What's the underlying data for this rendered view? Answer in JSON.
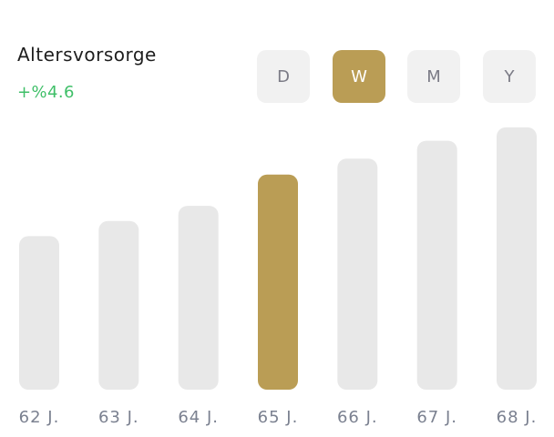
{
  "header": {
    "title": "Altersvorsorge",
    "change": "+%4.6"
  },
  "periods": {
    "options": [
      "D",
      "W",
      "M",
      "Y"
    ],
    "selected": "W"
  },
  "colors": {
    "accent": "#BA9D55",
    "bar": "#E8E8E8",
    "positive": "#3FBF68",
    "tick": "#7B8190"
  },
  "chart_data": {
    "type": "bar",
    "categories": [
      "62 J.",
      "63 J.",
      "64 J.",
      "65 J.",
      "66 J.",
      "67 J.",
      "68 J."
    ],
    "values": [
      172,
      189,
      206,
      241,
      259,
      279,
      294
    ],
    "highlighted": "65 J.",
    "title": "",
    "xlabel": "",
    "ylabel": "",
    "ylim": [
      0,
      300
    ],
    "grid": false,
    "legend": "none"
  }
}
